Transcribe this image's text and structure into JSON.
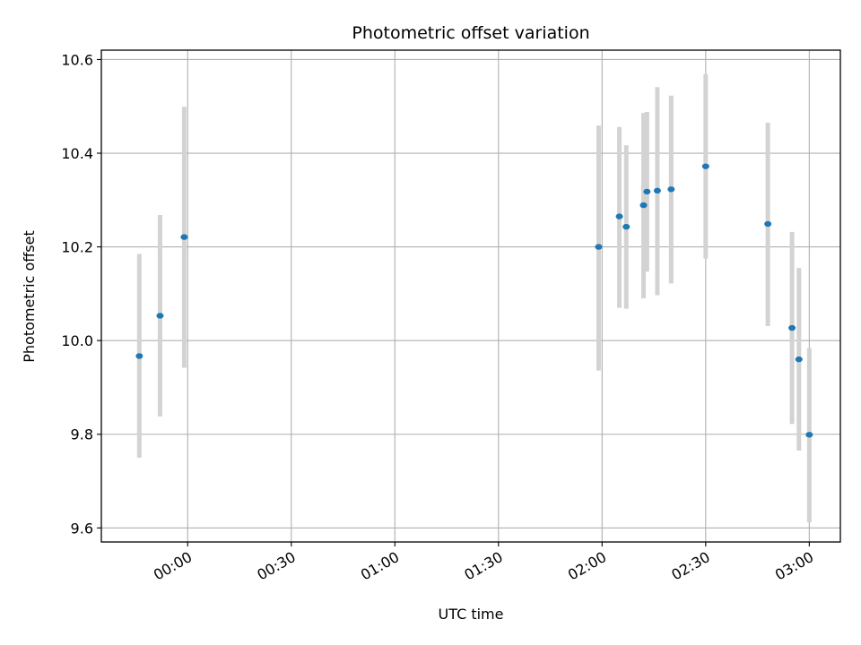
{
  "chart_data": {
    "type": "scatter",
    "title": "Photometric offset variation",
    "xlabel": "UTC time",
    "ylabel": "Photometric offset",
    "x_ticks": [
      "00:00",
      "00:30",
      "01:00",
      "01:30",
      "02:00",
      "02:30",
      "03:00"
    ],
    "y_ticks": [
      "9.6",
      "9.8",
      "10.0",
      "10.2",
      "10.4",
      "10.6"
    ],
    "ylim": [
      9.57,
      10.62
    ],
    "xlim": [
      "23:35",
      "03:09"
    ],
    "grid": true,
    "point_color": "#1f77b4",
    "errorbar_color": "#d3d3d3",
    "points": [
      {
        "x": "23:46",
        "y": 9.967,
        "low": 9.75,
        "high": 10.185
      },
      {
        "x": "23:52",
        "y": 10.053,
        "low": 9.838,
        "high": 10.268
      },
      {
        "x": "23:59",
        "y": 10.221,
        "low": 9.942,
        "high": 10.499
      },
      {
        "x": "01:59",
        "y": 10.2,
        "low": 9.936,
        "high": 10.459
      },
      {
        "x": "02:05",
        "y": 10.265,
        "low": 10.07,
        "high": 10.456
      },
      {
        "x": "02:07",
        "y": 10.243,
        "low": 10.068,
        "high": 10.417
      },
      {
        "x": "02:12",
        "y": 10.289,
        "low": 10.09,
        "high": 10.486
      },
      {
        "x": "02:13",
        "y": 10.318,
        "low": 10.147,
        "high": 10.488
      },
      {
        "x": "02:16",
        "y": 10.32,
        "low": 10.097,
        "high": 10.541
      },
      {
        "x": "02:20",
        "y": 10.323,
        "low": 10.122,
        "high": 10.523
      },
      {
        "x": "02:30",
        "y": 10.372,
        "low": 10.175,
        "high": 10.569
      },
      {
        "x": "02:48",
        "y": 10.249,
        "low": 10.031,
        "high": 10.465
      },
      {
        "x": "02:55",
        "y": 10.027,
        "low": 9.822,
        "high": 10.232
      },
      {
        "x": "02:57",
        "y": 9.96,
        "low": 9.765,
        "high": 10.155
      },
      {
        "x": "03:00",
        "y": 9.799,
        "low": 9.612,
        "high": 9.984
      }
    ]
  }
}
